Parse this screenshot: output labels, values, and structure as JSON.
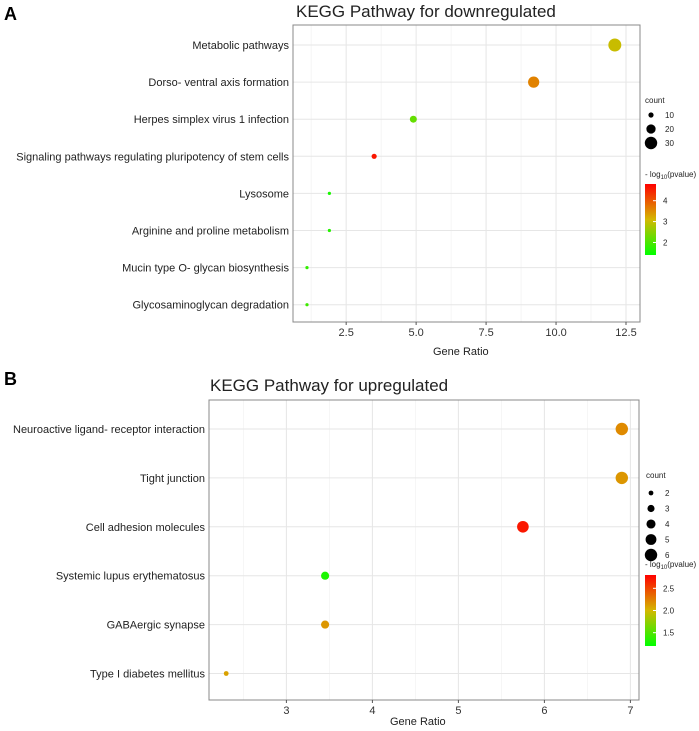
{
  "chart_data": [
    {
      "panel_label": "A",
      "type": "scatter",
      "title": "KEGG Pathway for downregulated",
      "xlabel": "Gene Ratio",
      "ylabel": "",
      "xlim": [
        0.6,
        13.0
      ],
      "xticks": [
        2.5,
        5.0,
        7.5,
        10.0,
        12.5
      ],
      "xtick_labels": [
        "2.5",
        "5.0",
        "7.5",
        "10.0",
        "12.5"
      ],
      "grid": true,
      "categories": [
        "Metabolic pathways",
        "Dorso- ventral axis formation",
        "Herpes simplex virus 1 infection",
        "Signaling pathways regulating pluripotency of stem cells",
        "Lysosome",
        "Arginine and proline metabolism",
        "Mucin type O- glycan biosynthesis",
        "Glycosaminoglycan degradation"
      ],
      "points": [
        {
          "category": "Metabolic pathways",
          "x": 12.1,
          "count": 32,
          "neglog10p": 3.0
        },
        {
          "category": "Dorso- ventral axis formation",
          "x": 9.2,
          "count": 26,
          "neglog10p": 3.6
        },
        {
          "category": "Herpes simplex virus 1 infection",
          "x": 4.9,
          "count": 14,
          "neglog10p": 2.2
        },
        {
          "category": "Signaling pathways regulating pluripotency of stem cells",
          "x": 3.5,
          "count": 10,
          "neglog10p": 4.6
        },
        {
          "category": "Lysosome",
          "x": 1.9,
          "count": 5,
          "neglog10p": 1.6
        },
        {
          "category": "Arginine and proline metabolism",
          "x": 1.9,
          "count": 5,
          "neglog10p": 1.7
        },
        {
          "category": "Mucin type O- glycan biosynthesis",
          "x": 1.1,
          "count": 3,
          "neglog10p": 1.8
        },
        {
          "category": "Glycosaminoglycan degradation",
          "x": 1.1,
          "count": 3,
          "neglog10p": 1.9
        }
      ],
      "size_legend": {
        "title": "count",
        "values": [
          10,
          20,
          30
        ],
        "labels": [
          "10",
          "20",
          "30"
        ]
      },
      "color_legend": {
        "title_prefix": "- log",
        "title_sub": "10",
        "title_suffix": "(pvalue)",
        "range": [
          1.4,
          4.8
        ],
        "ticks": [
          2,
          3,
          4
        ],
        "tick_labels": [
          "2",
          "3",
          "4"
        ],
        "low_color": "#00ff00",
        "mid_color": "#d4b800",
        "high_color": "#ff0000"
      },
      "legend_position": "right"
    },
    {
      "panel_label": "B",
      "type": "scatter",
      "title": "KEGG Pathway for upregulated",
      "xlabel": "Gene Ratio",
      "ylabel": "",
      "xlim": [
        2.1,
        7.1
      ],
      "xticks": [
        3,
        4,
        5,
        6,
        7
      ],
      "xtick_labels": [
        "3",
        "4",
        "5",
        "6",
        "7"
      ],
      "grid": true,
      "categories": [
        "Neuroactive ligand- receptor interaction",
        "Tight junction",
        "Cell adhesion molecules",
        "Systemic lupus erythematosus",
        "GABAergic synapse",
        "Type I diabetes mellitus"
      ],
      "points": [
        {
          "category": "Neuroactive ligand- receptor interaction",
          "x": 6.9,
          "count": 6,
          "neglog10p": 2.2
        },
        {
          "category": "Tight junction",
          "x": 6.9,
          "count": 6,
          "neglog10p": 2.15
        },
        {
          "category": "Cell adhesion molecules",
          "x": 5.75,
          "count": 5.5,
          "neglog10p": 2.7
        },
        {
          "category": "Systemic lupus erythematosus",
          "x": 3.45,
          "count": 3.5,
          "neglog10p": 1.3
        },
        {
          "category": "GABAergic synapse",
          "x": 3.45,
          "count": 3.5,
          "neglog10p": 2.15
        },
        {
          "category": "Type I diabetes mellitus",
          "x": 2.3,
          "count": 2,
          "neglog10p": 2.1
        }
      ],
      "size_legend": {
        "title": "count",
        "values": [
          2,
          3,
          4,
          5,
          6
        ],
        "labels": [
          "2",
          "3",
          "4",
          "5",
          "6"
        ]
      },
      "color_legend": {
        "title_prefix": "- log",
        "title_sub": "10",
        "title_suffix": "(pvalue)",
        "range": [
          1.2,
          2.8
        ],
        "ticks": [
          1.5,
          2.0,
          2.5
        ],
        "tick_labels": [
          "1.5",
          "2.0",
          "2.5"
        ],
        "low_color": "#00ff00",
        "mid_color": "#d4b800",
        "high_color": "#ff0000"
      },
      "legend_position": "right"
    }
  ]
}
